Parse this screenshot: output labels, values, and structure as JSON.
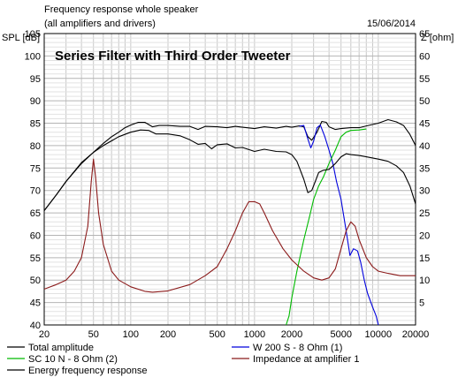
{
  "header": {
    "line1": "Frequency response whole speaker",
    "line2": "(all amplifiers and drivers)",
    "date": "15/06/2014"
  },
  "chart_data": {
    "type": "line",
    "title": "Series Filter with Third Order Tweeter",
    "xlabel": "",
    "ylabel_left": "SPL [dB]",
    "ylabel_right": "Z [ohm]",
    "xscale": "log",
    "xlim": [
      20,
      20000
    ],
    "ylim_left": [
      40,
      105
    ],
    "ylim_right": [
      0,
      65
    ],
    "grid": true,
    "x_ticks": [
      20,
      50,
      100,
      200,
      500,
      1000,
      2000,
      5000,
      10000,
      20000
    ],
    "x_tick_labels": [
      "20",
      "50",
      "100",
      "200",
      "500",
      "1000",
      "2000",
      "5000",
      "10000",
      "20000"
    ],
    "y_left_ticks": [
      40,
      45,
      50,
      55,
      60,
      65,
      70,
      75,
      80,
      85,
      90,
      95,
      100,
      105
    ],
    "y_left_tick_labels": [
      "40",
      "45",
      "50",
      "55",
      "60",
      "65",
      "70",
      "75",
      "80",
      "85",
      "90",
      "95",
      "100",
      "105"
    ],
    "y_right_ticks": [
      5,
      10,
      15,
      20,
      25,
      30,
      35,
      40,
      45,
      50,
      55,
      60,
      65
    ],
    "y_right_tick_labels": [
      "5",
      "10",
      "15",
      "20",
      "25",
      "30",
      "35",
      "40",
      "45",
      "50",
      "55",
      "60",
      "65"
    ],
    "legend_placement": "bottom",
    "series": [
      {
        "name": "Total amplitude",
        "color": "#000000",
        "axis": "left",
        "points": [
          [
            20,
            65.5
          ],
          [
            25,
            69
          ],
          [
            30,
            72
          ],
          [
            40,
            76
          ],
          [
            50,
            78.5
          ],
          [
            60,
            80.5
          ],
          [
            70,
            82
          ],
          [
            80,
            83
          ],
          [
            90,
            84
          ],
          [
            100,
            84.6
          ],
          [
            115,
            85.2
          ],
          [
            130,
            85.2
          ],
          [
            150,
            84.2
          ],
          [
            170,
            84.5
          ],
          [
            200,
            84.5
          ],
          [
            250,
            84.3
          ],
          [
            300,
            84.3
          ],
          [
            350,
            83.6
          ],
          [
            400,
            84.3
          ],
          [
            500,
            84.2
          ],
          [
            600,
            84
          ],
          [
            700,
            84.3
          ],
          [
            800,
            84.1
          ],
          [
            1000,
            83.8
          ],
          [
            1200,
            84.2
          ],
          [
            1500,
            83.9
          ],
          [
            1800,
            84.3
          ],
          [
            2000,
            84.1
          ],
          [
            2300,
            84.4
          ],
          [
            2500,
            84.2
          ],
          [
            2700,
            82
          ],
          [
            2900,
            81.2
          ],
          [
            3200,
            83
          ],
          [
            3500,
            85.4
          ],
          [
            3800,
            85.2
          ],
          [
            4000,
            84.2
          ],
          [
            4500,
            83.6
          ],
          [
            5000,
            83.8
          ],
          [
            6000,
            84
          ],
          [
            7000,
            84
          ],
          [
            8000,
            84.4
          ],
          [
            10000,
            85
          ],
          [
            12000,
            85.8
          ],
          [
            14000,
            85.3
          ],
          [
            16000,
            84.5
          ],
          [
            18000,
            82.5
          ],
          [
            20000,
            80
          ]
        ]
      },
      {
        "name": "W 200 S - 8 Ohm (1)",
        "color": "#0000dd",
        "axis": "left",
        "points": [
          [
            2300,
            84.3
          ],
          [
            2500,
            84.5
          ],
          [
            2700,
            81.5
          ],
          [
            2850,
            79.5
          ],
          [
            3000,
            81
          ],
          [
            3200,
            84
          ],
          [
            3400,
            84.6
          ],
          [
            3700,
            82
          ],
          [
            4000,
            79
          ],
          [
            4300,
            76
          ],
          [
            4600,
            72
          ],
          [
            5000,
            68
          ],
          [
            5500,
            61
          ],
          [
            5900,
            55.5
          ],
          [
            6300,
            57
          ],
          [
            6800,
            56.5
          ],
          [
            7200,
            54
          ],
          [
            7700,
            50
          ],
          [
            8200,
            47
          ],
          [
            9000,
            44
          ],
          [
            9600,
            42
          ],
          [
            10000,
            40
          ]
        ]
      },
      {
        "name": "SC 10 N - 8 Ohm (2)",
        "color": "#00bb00",
        "axis": "left",
        "points": [
          [
            1800,
            40
          ],
          [
            1900,
            42
          ],
          [
            2000,
            46
          ],
          [
            2200,
            52
          ],
          [
            2500,
            59
          ],
          [
            2800,
            64.5
          ],
          [
            3000,
            68
          ],
          [
            3300,
            71
          ],
          [
            3600,
            73
          ],
          [
            4000,
            76
          ],
          [
            4500,
            79
          ],
          [
            5000,
            82
          ],
          [
            5500,
            83
          ],
          [
            6000,
            83.4
          ],
          [
            7000,
            83.5
          ],
          [
            8000,
            83.7
          ]
        ]
      },
      {
        "name": "Impedance at amplifier 1",
        "color": "#8b1a1a",
        "axis": "right",
        "points": [
          [
            20,
            8
          ],
          [
            25,
            9
          ],
          [
            30,
            10
          ],
          [
            35,
            12
          ],
          [
            40,
            15
          ],
          [
            45,
            22
          ],
          [
            48,
            32
          ],
          [
            50,
            37
          ],
          [
            52,
            33
          ],
          [
            55,
            25
          ],
          [
            60,
            18
          ],
          [
            70,
            12
          ],
          [
            80,
            10
          ],
          [
            100,
            8.5
          ],
          [
            130,
            7.5
          ],
          [
            150,
            7.3
          ],
          [
            200,
            7.6
          ],
          [
            300,
            9
          ],
          [
            400,
            11
          ],
          [
            500,
            13
          ],
          [
            600,
            17
          ],
          [
            700,
            21
          ],
          [
            800,
            25
          ],
          [
            900,
            27.5
          ],
          [
            1000,
            27.5
          ],
          [
            1100,
            27
          ],
          [
            1200,
            25
          ],
          [
            1400,
            21
          ],
          [
            1700,
            17
          ],
          [
            2000,
            14.5
          ],
          [
            2500,
            12
          ],
          [
            3000,
            10.5
          ],
          [
            3500,
            10
          ],
          [
            4000,
            10.5
          ],
          [
            4500,
            12.5
          ],
          [
            5000,
            17
          ],
          [
            5500,
            21
          ],
          [
            6000,
            23
          ],
          [
            6500,
            22
          ],
          [
            7000,
            19
          ],
          [
            8000,
            15
          ],
          [
            9000,
            13
          ],
          [
            10000,
            12
          ],
          [
            12000,
            11.5
          ],
          [
            15000,
            11
          ],
          [
            20000,
            11
          ]
        ]
      },
      {
        "name": "Energy frequency response",
        "color": "#000000",
        "axis": "left",
        "points": [
          [
            20,
            65.5
          ],
          [
            25,
            69
          ],
          [
            30,
            72
          ],
          [
            40,
            76.2
          ],
          [
            50,
            78.5
          ],
          [
            60,
            80
          ],
          [
            80,
            82
          ],
          [
            100,
            83
          ],
          [
            120,
            83.5
          ],
          [
            140,
            83.4
          ],
          [
            160,
            82.6
          ],
          [
            200,
            82.6
          ],
          [
            250,
            82.2
          ],
          [
            300,
            81.3
          ],
          [
            350,
            80.3
          ],
          [
            400,
            80.5
          ],
          [
            450,
            79.3
          ],
          [
            500,
            80.2
          ],
          [
            600,
            80.4
          ],
          [
            700,
            79.5
          ],
          [
            800,
            79.6
          ],
          [
            1000,
            78.7
          ],
          [
            1200,
            79.2
          ],
          [
            1500,
            78.7
          ],
          [
            1800,
            78.6
          ],
          [
            2000,
            78
          ],
          [
            2200,
            76.5
          ],
          [
            2500,
            72.5
          ],
          [
            2700,
            69.5
          ],
          [
            2900,
            70
          ],
          [
            3100,
            72
          ],
          [
            3300,
            74
          ],
          [
            3600,
            74.5
          ],
          [
            4000,
            74.7
          ],
          [
            4500,
            76
          ],
          [
            5000,
            77.5
          ],
          [
            5500,
            78.2
          ],
          [
            6000,
            78
          ],
          [
            7000,
            77.8
          ],
          [
            8000,
            77.5
          ],
          [
            10000,
            77
          ],
          [
            12000,
            76.5
          ],
          [
            14000,
            75.5
          ],
          [
            16000,
            74
          ],
          [
            18000,
            71
          ],
          [
            20000,
            67
          ]
        ]
      }
    ]
  }
}
